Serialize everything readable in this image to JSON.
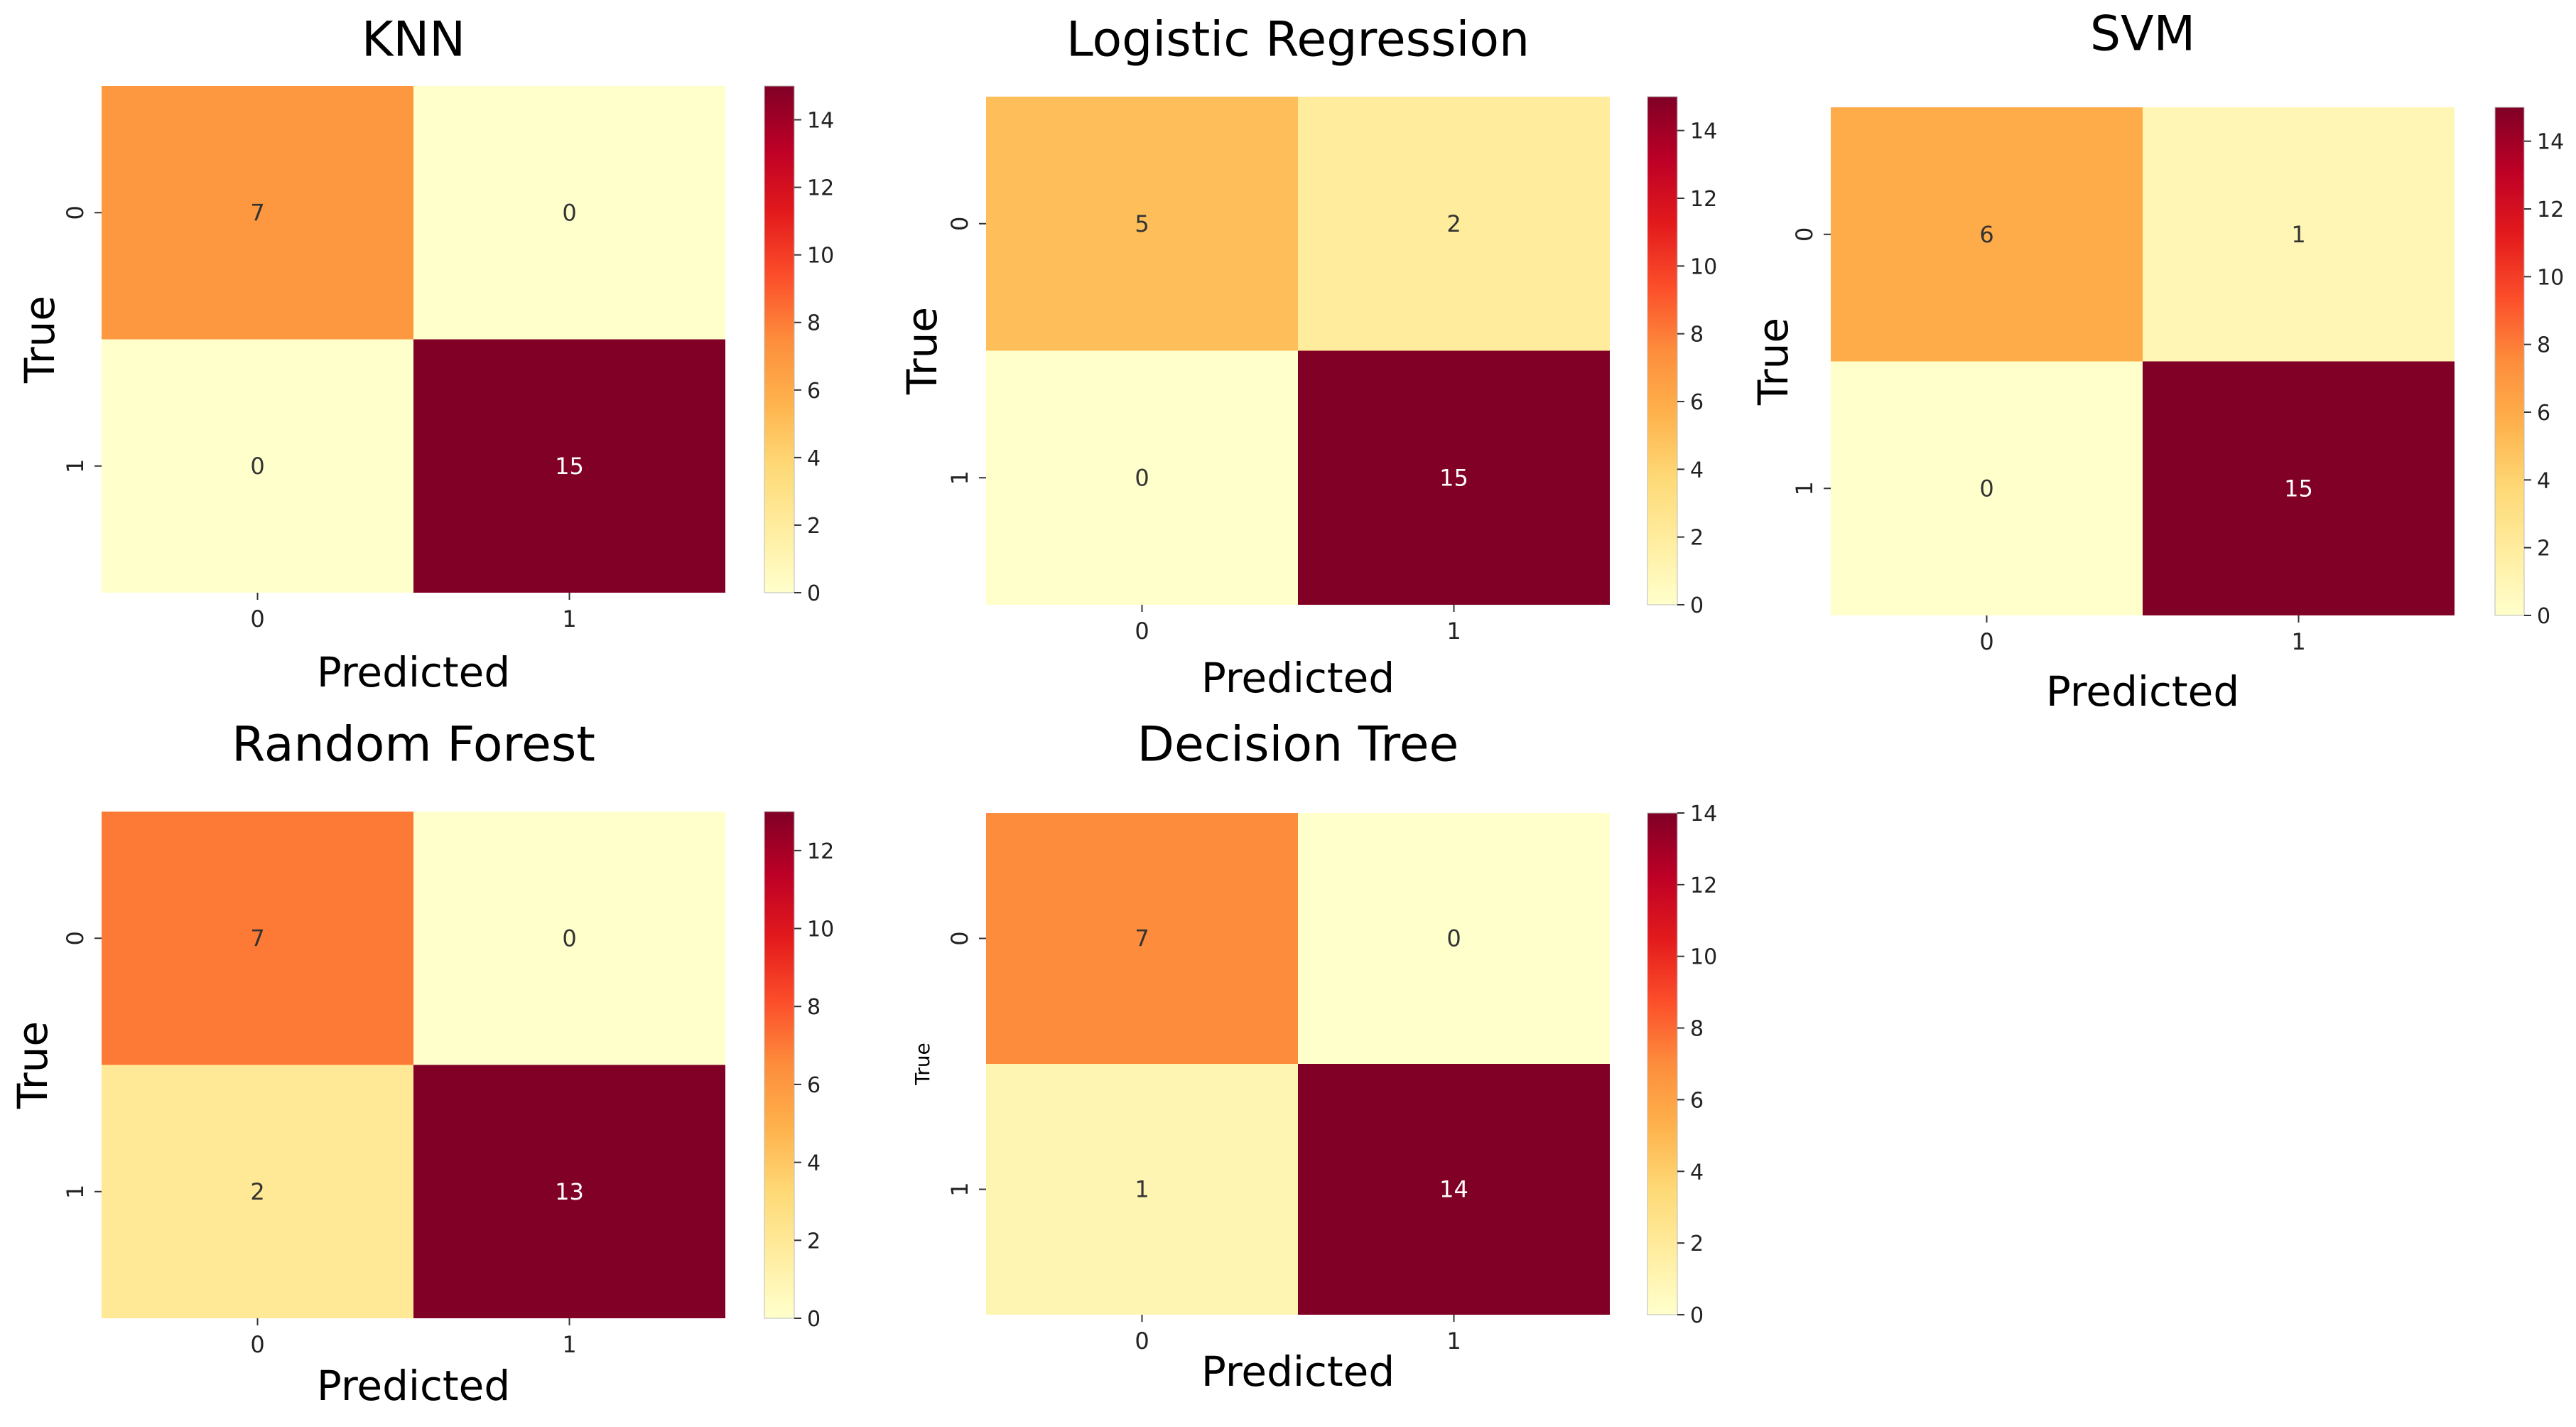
{
  "colormap": [
    "#ffffcc",
    "#ffeda0",
    "#fed976",
    "#feb24c",
    "#fd8d3c",
    "#fc4e2a",
    "#e31a1c",
    "#bd0026",
    "#800026"
  ],
  "chart_data": [
    {
      "type": "heatmap",
      "title": "KNN",
      "xlabel": "Predicted",
      "ylabel": "True",
      "x_tick_labels": [
        "0",
        "1"
      ],
      "y_tick_labels": [
        "0",
        "1"
      ],
      "matrix": [
        [
          7,
          0
        ],
        [
          0,
          15
        ]
      ],
      "vmin": 0,
      "vmax": 15,
      "colorbar_ticks": [
        "0",
        "2",
        "4",
        "6",
        "8",
        "10",
        "12",
        "14"
      ]
    },
    {
      "type": "heatmap",
      "title": "Logistic Regression",
      "xlabel": "Predicted",
      "ylabel": "True",
      "x_tick_labels": [
        "0",
        "1"
      ],
      "y_tick_labels": [
        "0",
        "1"
      ],
      "matrix": [
        [
          5,
          2
        ],
        [
          0,
          15
        ]
      ],
      "vmin": 0,
      "vmax": 15,
      "colorbar_ticks": [
        "0",
        "2",
        "4",
        "6",
        "8",
        "10",
        "12",
        "14"
      ]
    },
    {
      "type": "heatmap",
      "title": "SVM",
      "xlabel": "Predicted",
      "ylabel": "True",
      "x_tick_labels": [
        "0",
        "1"
      ],
      "y_tick_labels": [
        "0",
        "1"
      ],
      "matrix": [
        [
          6,
          1
        ],
        [
          0,
          15
        ]
      ],
      "vmin": 0,
      "vmax": 15,
      "colorbar_ticks": [
        "0",
        "2",
        "4",
        "6",
        "8",
        "10",
        "12",
        "14"
      ]
    },
    {
      "type": "heatmap",
      "title": "Random Forest",
      "xlabel": "Predicted",
      "ylabel": "True",
      "x_tick_labels": [
        "0",
        "1"
      ],
      "y_tick_labels": [
        "0",
        "1"
      ],
      "matrix": [
        [
          7,
          0
        ],
        [
          2,
          13
        ]
      ],
      "vmin": 0,
      "vmax": 13,
      "colorbar_ticks": [
        "0",
        "2",
        "4",
        "6",
        "8",
        "10",
        "12"
      ]
    },
    {
      "type": "heatmap",
      "title": "Decision Tree",
      "xlabel": "Predicted",
      "ylabel": "True",
      "x_tick_labels": [
        "0",
        "1"
      ],
      "y_tick_labels": [
        "0",
        "1"
      ],
      "matrix": [
        [
          7,
          0
        ],
        [
          1,
          14
        ]
      ],
      "vmin": 0,
      "vmax": 14,
      "colorbar_ticks": [
        "0",
        "2",
        "4",
        "6",
        "8",
        "10",
        "12",
        "14"
      ]
    }
  ]
}
